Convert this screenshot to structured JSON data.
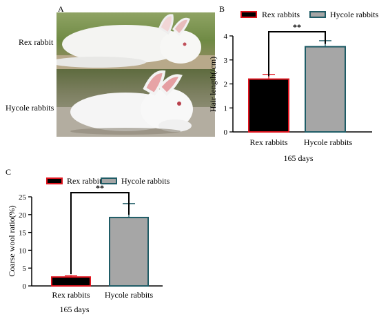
{
  "panel_a": {
    "letter": "A",
    "top_label": "Rex rabbit",
    "bottom_label": "Hycole rabbits"
  },
  "colors": {
    "rex_fill": "#000000",
    "rex_edge": "#e0141e",
    "hycole_fill": "#a6a6a6",
    "hycole_edge": "#1f5c66"
  },
  "chart_data": [
    {
      "panel": "B",
      "type": "bar",
      "categories": [
        "Rex rabbits",
        "Hycole rabbits"
      ],
      "values": [
        2.2,
        3.55
      ],
      "errors": [
        0.2,
        0.25
      ],
      "legend": [
        "Rex rabbits",
        "Hycole rabbits"
      ],
      "legend_position": "top",
      "ylabel": "Hair length(/cm)",
      "xlabel": "165 days",
      "ylim": [
        0,
        4
      ],
      "yticks": [
        0,
        1,
        2,
        3,
        4
      ],
      "significance": "**",
      "grid": false
    },
    {
      "panel": "C",
      "type": "bar",
      "categories": [
        "Rex rabbits",
        "Hycole rabbits"
      ],
      "values": [
        2.5,
        19.2
      ],
      "errors": [
        0.4,
        3.9
      ],
      "legend": [
        "Rex rabbits",
        "Hycole rabbits"
      ],
      "legend_position": "top",
      "ylabel": "Coarse wool ratio(%)",
      "xlabel": "165 days",
      "ylim": [
        0,
        25
      ],
      "yticks": [
        0,
        5,
        10,
        15,
        20,
        25
      ],
      "significance": "**",
      "grid": false
    }
  ]
}
